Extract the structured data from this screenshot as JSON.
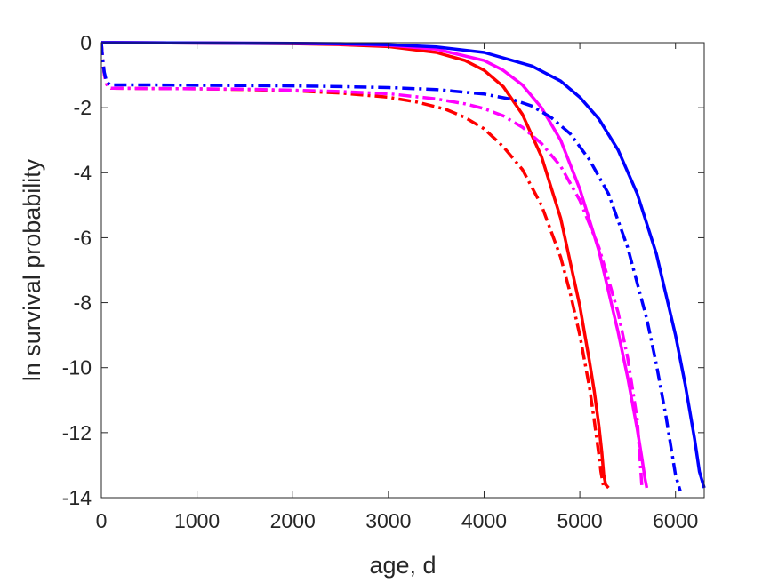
{
  "chart_data": {
    "type": "line",
    "title": "",
    "xlabel": "age, d",
    "ylabel": "ln survival probability",
    "xlim": [
      0,
      6300
    ],
    "ylim": [
      -14,
      0
    ],
    "grid": false,
    "legend": "none",
    "box": true,
    "xticks": [
      0,
      1000,
      2000,
      3000,
      4000,
      5000,
      6000
    ],
    "yticks": [
      0,
      -2,
      -4,
      -6,
      -8,
      -10,
      -12,
      -14
    ],
    "xtick_labels": [
      "0",
      "1000",
      "2000",
      "3000",
      "4000",
      "5000",
      "6000"
    ],
    "ytick_labels": [
      "0",
      "-2",
      "-4",
      "-6",
      "-8",
      "-10",
      "-12",
      "-14"
    ],
    "series": [
      {
        "color": "#ff0000",
        "dash": "solid",
        "x": [
          0,
          1000,
          2000,
          2500,
          3000,
          3500,
          3800,
          4000,
          4200,
          4400,
          4600,
          4800,
          5000,
          5100,
          5150,
          5200,
          5230,
          5250,
          5270,
          5300
        ],
        "y": [
          0,
          -0.01,
          -0.03,
          -0.06,
          -0.12,
          -0.3,
          -0.55,
          -0.85,
          -1.35,
          -2.2,
          -3.5,
          -5.4,
          -8.1,
          -9.8,
          -10.7,
          -11.8,
          -12.6,
          -13.3,
          -13.6,
          -13.7
        ]
      },
      {
        "color": "#ff00ff",
        "dash": "solid",
        "x": [
          0,
          1000,
          2000,
          2500,
          3000,
          3500,
          4000,
          4200,
          4400,
          4600,
          4800,
          5000,
          5200,
          5400,
          5500,
          5600,
          5650,
          5680,
          5700
        ],
        "y": [
          0,
          -0.01,
          -0.02,
          -0.04,
          -0.08,
          -0.2,
          -0.55,
          -0.85,
          -1.3,
          -2.0,
          -3.0,
          -4.5,
          -6.4,
          -8.9,
          -10.3,
          -11.9,
          -12.8,
          -13.4,
          -13.7
        ]
      },
      {
        "color": "#0000ff",
        "dash": "solid",
        "x": [
          0,
          1000,
          2000,
          2500,
          3000,
          3500,
          4000,
          4500,
          4800,
          5000,
          5200,
          5400,
          5600,
          5800,
          6000,
          6100,
          6200,
          6250,
          6300
        ],
        "y": [
          0,
          -0.01,
          -0.02,
          -0.03,
          -0.06,
          -0.13,
          -0.3,
          -0.72,
          -1.18,
          -1.68,
          -2.35,
          -3.3,
          -4.65,
          -6.5,
          -9.0,
          -10.5,
          -12.2,
          -13.2,
          -13.7
        ]
      },
      {
        "color": "#ff0000",
        "dash": "dashdot",
        "x": [
          0,
          10,
          30,
          50,
          70,
          100,
          500,
          1000,
          1500,
          2000,
          2500,
          3000,
          3300,
          3600,
          3800,
          4000,
          4200,
          4400,
          4600,
          4800,
          4900,
          5000,
          5100,
          5150,
          5200,
          5220,
          5250
        ],
        "y": [
          0,
          -0.4,
          -0.95,
          -1.25,
          -1.35,
          -1.4,
          -1.41,
          -1.42,
          -1.44,
          -1.48,
          -1.55,
          -1.68,
          -1.83,
          -2.05,
          -2.3,
          -2.65,
          -3.2,
          -3.9,
          -5.0,
          -6.6,
          -7.7,
          -9.0,
          -10.6,
          -11.6,
          -12.7,
          -13.2,
          -13.7
        ]
      },
      {
        "color": "#ff00ff",
        "dash": "dashdot",
        "x": [
          0,
          10,
          30,
          50,
          70,
          100,
          500,
          1000,
          1500,
          2000,
          2500,
          3000,
          3500,
          3800,
          4000,
          4200,
          4400,
          4600,
          4800,
          5000,
          5200,
          5400,
          5500,
          5600,
          5650
        ],
        "y": [
          0,
          -0.4,
          -0.95,
          -1.25,
          -1.35,
          -1.4,
          -1.41,
          -1.42,
          -1.43,
          -1.46,
          -1.5,
          -1.57,
          -1.73,
          -1.88,
          -2.03,
          -2.25,
          -2.6,
          -3.1,
          -3.8,
          -4.85,
          -6.3,
          -8.3,
          -9.7,
          -11.6,
          -13.7
        ]
      },
      {
        "color": "#0000ff",
        "dash": "dashdot",
        "x": [
          0,
          10,
          30,
          50,
          70,
          100,
          500,
          1000,
          1500,
          2000,
          2500,
          3000,
          3500,
          4000,
          4300,
          4500,
          4700,
          4900,
          5100,
          5300,
          5500,
          5700,
          5800,
          5900,
          6000,
          6050
        ],
        "y": [
          0,
          -0.4,
          -0.9,
          -1.15,
          -1.25,
          -1.3,
          -1.3,
          -1.31,
          -1.32,
          -1.33,
          -1.35,
          -1.38,
          -1.44,
          -1.58,
          -1.75,
          -1.95,
          -2.3,
          -2.8,
          -3.6,
          -4.65,
          -6.3,
          -8.5,
          -9.9,
          -11.5,
          -13.3,
          -13.8
        ]
      }
    ]
  }
}
